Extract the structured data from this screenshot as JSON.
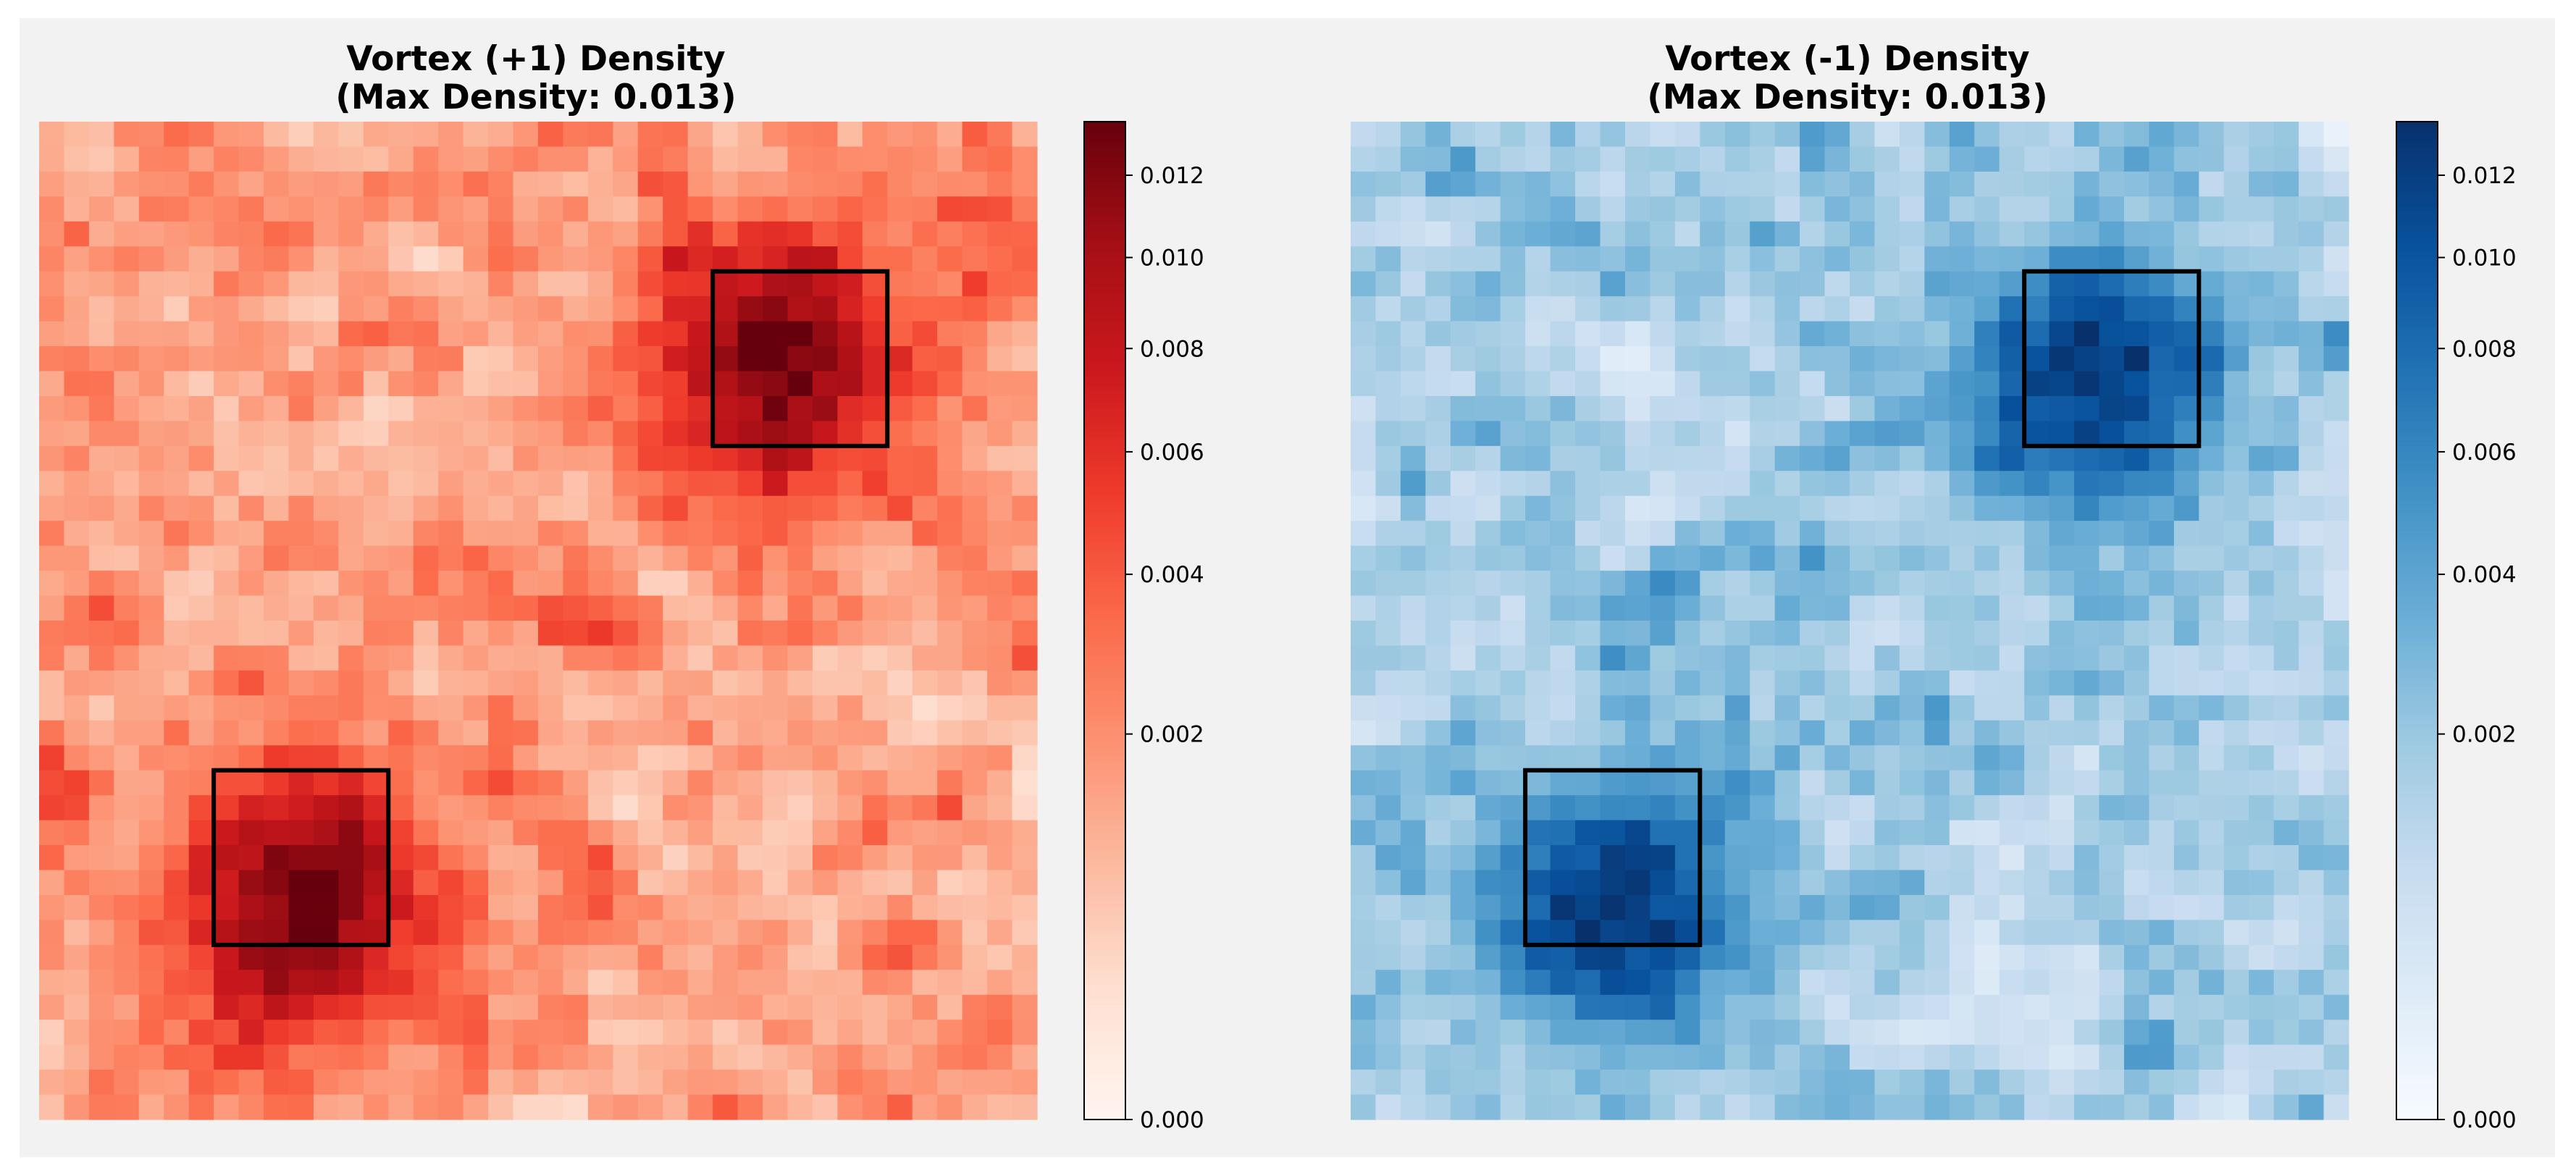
{
  "chart_data": [
    {
      "type": "heatmap",
      "title_line1": "Vortex (+1) Density",
      "title_line2": "(Max Density: 0.013)",
      "colormap": "Reds",
      "colormap_stops": [
        "#fff5f0",
        "#fee0d2",
        "#fcbba1",
        "#fc9272",
        "#fb6a4a",
        "#ef3b2c",
        "#cb181d",
        "#a50f15",
        "#67000d"
      ],
      "grid_rows": 40,
      "grid_cols": 40,
      "vmin": 0.0,
      "vmax": 0.0134,
      "colorbar_scale": "sqrt",
      "colorbar_ticks": [
        "0.000",
        "0.002",
        "0.004",
        "0.006",
        "0.008",
        "0.010",
        "0.012"
      ],
      "colorbar_tick_values": [
        0.0,
        0.002,
        0.004,
        0.006,
        0.008,
        0.01,
        0.012
      ],
      "hotspots": [
        {
          "row": 9,
          "col": 29,
          "peak": 0.0125,
          "radius": 3.2
        },
        {
          "row": 31,
          "col": 10,
          "peak": 0.013,
          "radius": 3.2
        }
      ],
      "highlight_boxes": [
        {
          "row_start": 6,
          "row_end": 13,
          "col_start": 27,
          "col_end": 34
        },
        {
          "row_start": 26,
          "row_end": 33,
          "col_start": 7,
          "col_end": 14
        }
      ]
    },
    {
      "type": "heatmap",
      "title_line1": "Vortex (-1) Density",
      "title_line2": "(Max Density: 0.013)",
      "colormap": "Blues",
      "colormap_stops": [
        "#f7fbff",
        "#deebf7",
        "#c6dbef",
        "#9ecae1",
        "#6baed6",
        "#4292c6",
        "#2171b5",
        "#08519c",
        "#08306b"
      ],
      "grid_rows": 40,
      "grid_cols": 40,
      "vmin": 0.0,
      "vmax": 0.0134,
      "colorbar_scale": "sqrt",
      "colorbar_ticks": [
        "0.000",
        "0.002",
        "0.004",
        "0.006",
        "0.008",
        "0.010",
        "0.012"
      ],
      "colorbar_tick_values": [
        0.0,
        0.002,
        0.004,
        0.006,
        0.008,
        0.01,
        0.012
      ],
      "hotspots": [
        {
          "row": 10,
          "col": 29,
          "peak": 0.0115,
          "radius": 3.2
        },
        {
          "row": 31,
          "col": 10,
          "peak": 0.0128,
          "radius": 3.2
        }
      ],
      "highlight_boxes": [
        {
          "row_start": 6,
          "row_end": 13,
          "col_start": 27,
          "col_end": 34
        },
        {
          "row_start": 26,
          "row_end": 33,
          "col_start": 7,
          "col_end": 14
        }
      ]
    }
  ]
}
